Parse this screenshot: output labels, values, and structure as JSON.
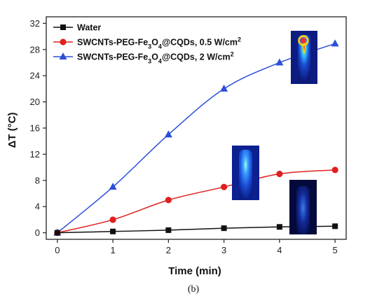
{
  "chart_data": {
    "type": "line",
    "xlabel": "Time (min)",
    "ylabel": "ΔT (°C)",
    "x": [
      0,
      1,
      2,
      3,
      4,
      5
    ],
    "xlim": [
      -0.2,
      5.2
    ],
    "ylim": [
      -1,
      33
    ],
    "xticks": [
      "0",
      "1",
      "2",
      "3",
      "4",
      "5"
    ],
    "yticks": [
      "0",
      "4",
      "8",
      "12",
      "16",
      "20",
      "24",
      "28",
      "32"
    ],
    "ytick_values": [
      0,
      4,
      8,
      12,
      16,
      20,
      24,
      28,
      32
    ],
    "legend_position": "top-left",
    "grid": false,
    "series": [
      {
        "name": "Water",
        "legend": {
          "pre": "Water",
          "parts": []
        },
        "color": "#111111",
        "marker": "square",
        "values": [
          0,
          0.2,
          0.4,
          0.7,
          0.9,
          1.0
        ]
      },
      {
        "name": "SWCNTs-PEG-Fe3O4@CQDs, 0.5 W/cm2",
        "legend": {
          "pre": "SWCNTs-PEG-Fe",
          "parts": [
            [
              "3",
              "sub"
            ],
            [
              "O",
              ""
            ],
            [
              "4",
              "sub"
            ],
            [
              "@CQDs, 0.5 W/cm",
              ""
            ],
            [
              "2",
              "sup"
            ]
          ]
        },
        "color": "#e02020",
        "marker": "circle",
        "values": [
          0,
          2,
          5,
          7,
          9,
          9.6
        ]
      },
      {
        "name": "SWCNTs-PEG-Fe3O4@CQDs, 2 W/cm2",
        "legend": {
          "pre": "SWCNTs-PEG-Fe",
          "parts": [
            [
              "3",
              "sub"
            ],
            [
              "O",
              ""
            ],
            [
              "4",
              "sub"
            ],
            [
              "@CQDs, 2 W/cm",
              ""
            ],
            [
              "2",
              "sup"
            ]
          ]
        },
        "color": "#2b4fd8",
        "marker": "triangle",
        "values": [
          0,
          7,
          15,
          22,
          26,
          28.9
        ]
      }
    ]
  },
  "caption": "(b)"
}
